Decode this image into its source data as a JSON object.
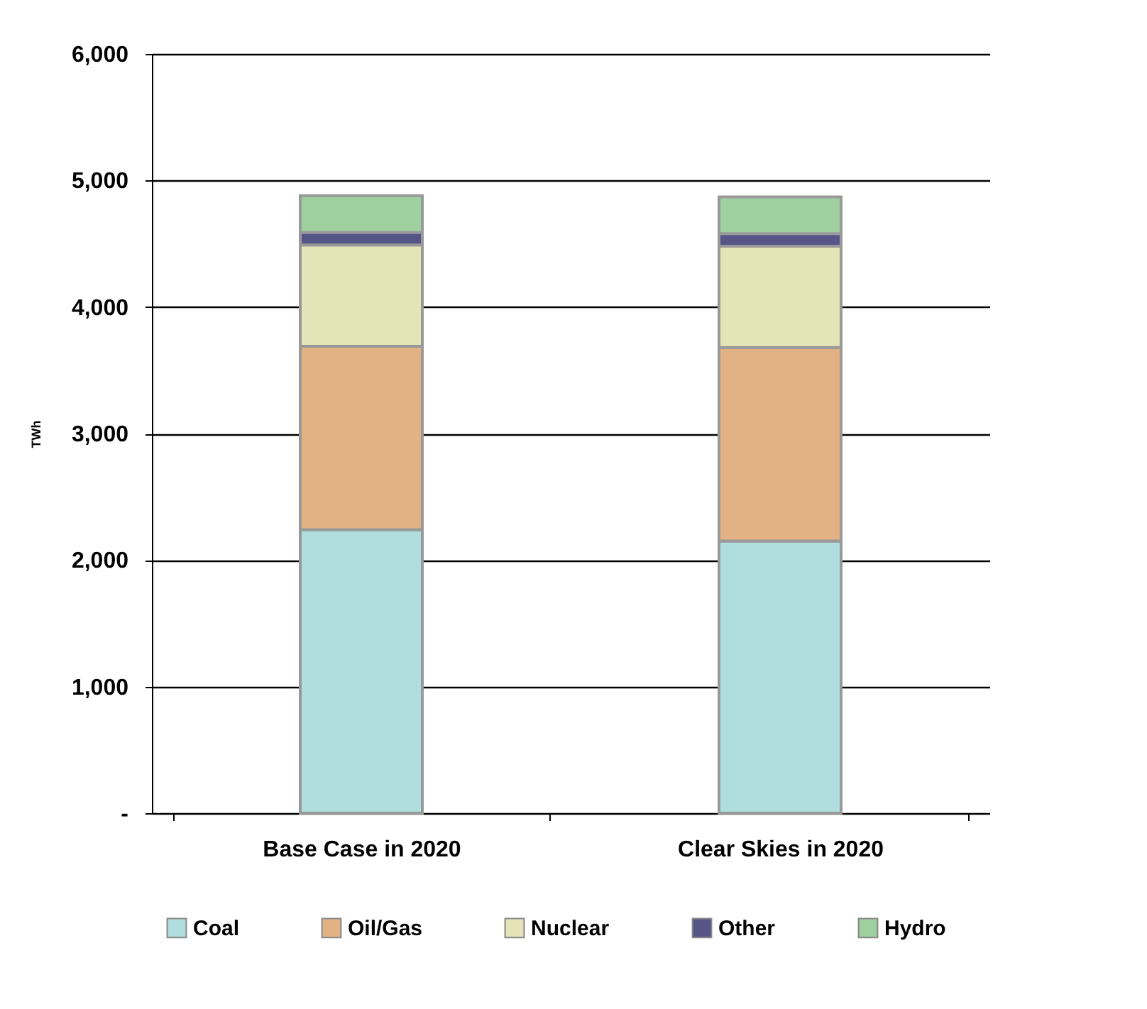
{
  "chart_data": {
    "type": "bar",
    "stacked": true,
    "ylabel": "TWh",
    "categories": [
      "Base Case in 2020",
      "Clear Skies in 2020"
    ],
    "series": [
      {
        "name": "Coal",
        "color": "#b0dede",
        "values": [
          2240,
          2150
        ]
      },
      {
        "name": "Oil/Gas",
        "color": "#e2b285",
        "values": [
          1450,
          1530
        ]
      },
      {
        "name": "Nuclear",
        "color": "#e4e4b8",
        "values": [
          800,
          800
        ]
      },
      {
        "name": "Other",
        "color": "#555588",
        "values": [
          100,
          100
        ]
      },
      {
        "name": "Hydro",
        "color": "#9fd0a0",
        "values": [
          290,
          290
        ]
      }
    ],
    "ylim": [
      0,
      6000
    ],
    "yticks": [
      {
        "value": 0,
        "label": "-"
      },
      {
        "value": 1000,
        "label": "1,000"
      },
      {
        "value": 2000,
        "label": "2,000"
      },
      {
        "value": 3000,
        "label": "3,000"
      },
      {
        "value": 4000,
        "label": "4,000"
      },
      {
        "value": 5000,
        "label": "5,000"
      },
      {
        "value": 6000,
        "label": "6,000"
      }
    ],
    "grid": "y",
    "legend": "bottom"
  }
}
